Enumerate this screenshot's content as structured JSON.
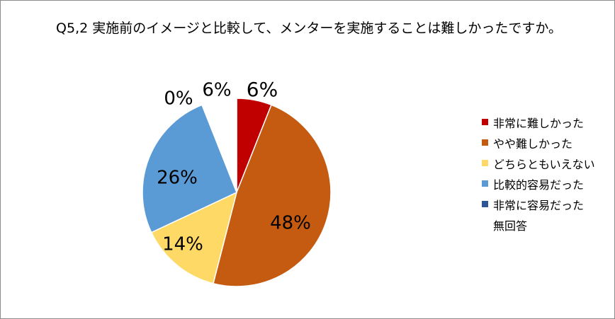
{
  "chart_data": {
    "type": "pie",
    "title": "Q5,2 実施前のイメージと比較して、メンターを実施することは難しかったですか。",
    "unit": "%",
    "categories": [
      "非常に難しかった",
      "やや難しかった",
      "どちらともいえない",
      "比較的容易だった",
      "非常に容易だった",
      "無回答"
    ],
    "values": [
      6,
      48,
      14,
      26,
      0,
      6
    ],
    "labels": [
      "6%",
      "48%",
      "14%",
      "26%",
      "0%",
      "6%"
    ],
    "colors": [
      "#c00000",
      "#c55a11",
      "#ffd966",
      "#5b9bd5",
      "#2e5597",
      "#ffffff"
    ],
    "legend_position": "right"
  }
}
